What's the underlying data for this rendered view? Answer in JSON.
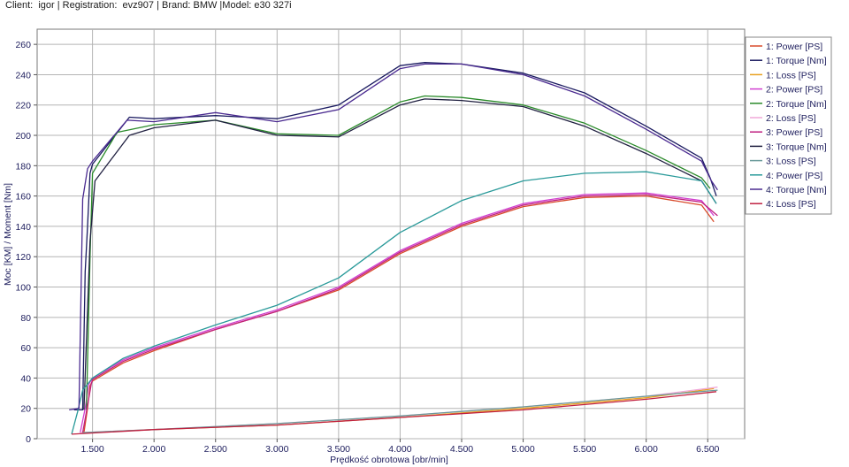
{
  "header": {
    "client_label": "Client:",
    "client_value": "igor",
    "registration_label": "Registration:",
    "registration_value": "evz907",
    "brand_label": "Brand:",
    "brand_value": "BMW",
    "model_label": "Model:",
    "model_value": "e30 327i"
  },
  "chart_data": {
    "type": "line",
    "title": "",
    "xlabel": "Prędkość obrotowa [obr/min]",
    "ylabel": "Moc [KM] / Moment [Nm]",
    "xlim": [
      1050,
      6800
    ],
    "ylim": [
      0,
      270
    ],
    "x_ticks": [
      1500,
      2000,
      2500,
      3000,
      3500,
      4000,
      4500,
      5000,
      5500,
      6000,
      6500
    ],
    "x_tick_labels": [
      "1.500",
      "2.000",
      "2.500",
      "3.000",
      "3.500",
      "4.000",
      "4.500",
      "5.000",
      "5.500",
      "6.000",
      "6.500"
    ],
    "y_ticks": [
      0,
      20,
      40,
      60,
      80,
      100,
      120,
      140,
      160,
      180,
      200,
      220,
      240,
      260
    ],
    "grid": true,
    "legend_position": "right",
    "series": [
      {
        "name": "1: Power [PS]",
        "color": "#d84a2a",
        "points": [
          [
            1430,
            4
          ],
          [
            1460,
            20
          ],
          [
            1480,
            35
          ],
          [
            1500,
            38
          ],
          [
            1750,
            50
          ],
          [
            2000,
            58
          ],
          [
            2500,
            72
          ],
          [
            3000,
            84
          ],
          [
            3500,
            98
          ],
          [
            4000,
            122
          ],
          [
            4500,
            140
          ],
          [
            5000,
            153
          ],
          [
            5500,
            159
          ],
          [
            6000,
            160
          ],
          [
            6450,
            154
          ],
          [
            6550,
            143
          ]
        ]
      },
      {
        "name": "1: Torque [Nm]",
        "color": "#1a1a60",
        "points": [
          [
            1350,
            19
          ],
          [
            1420,
            19
          ],
          [
            1440,
            110
          ],
          [
            1460,
            140
          ],
          [
            1480,
            175
          ],
          [
            1500,
            181
          ],
          [
            1800,
            212
          ],
          [
            2000,
            211
          ],
          [
            2500,
            213
          ],
          [
            3000,
            211
          ],
          [
            3500,
            220
          ],
          [
            4000,
            246
          ],
          [
            4200,
            248
          ],
          [
            4500,
            247
          ],
          [
            5000,
            241
          ],
          [
            5500,
            228
          ],
          [
            6000,
            206
          ],
          [
            6450,
            185
          ],
          [
            6520,
            172
          ],
          [
            6570,
            160
          ]
        ]
      },
      {
        "name": "1: Loss [PS]",
        "color": "#e8a020",
        "points": [
          [
            1430,
            4
          ],
          [
            2000,
            6
          ],
          [
            3000,
            9
          ],
          [
            4000,
            14
          ],
          [
            5000,
            20
          ],
          [
            6000,
            27
          ],
          [
            6550,
            33
          ]
        ]
      },
      {
        "name": "2: Power [PS]",
        "color": "#d040d0",
        "points": [
          [
            1400,
            4
          ],
          [
            1440,
            20
          ],
          [
            1470,
            36
          ],
          [
            1500,
            40
          ],
          [
            1750,
            52
          ],
          [
            2000,
            60
          ],
          [
            2500,
            73
          ],
          [
            3000,
            85
          ],
          [
            3500,
            100
          ],
          [
            4000,
            124
          ],
          [
            4500,
            142
          ],
          [
            5000,
            155
          ],
          [
            5500,
            161
          ],
          [
            6000,
            162
          ],
          [
            6450,
            157
          ],
          [
            6550,
            147
          ]
        ]
      },
      {
        "name": "2: Torque [Nm]",
        "color": "#2a8a2a",
        "points": [
          [
            1450,
            19
          ],
          [
            1480,
            120
          ],
          [
            1500,
            175
          ],
          [
            1700,
            202
          ],
          [
            2000,
            207
          ],
          [
            2500,
            210
          ],
          [
            3000,
            201
          ],
          [
            3500,
            200
          ],
          [
            4000,
            222
          ],
          [
            4200,
            226
          ],
          [
            4500,
            225
          ],
          [
            5000,
            220
          ],
          [
            5500,
            208
          ],
          [
            6000,
            190
          ],
          [
            6450,
            172
          ],
          [
            6520,
            165
          ]
        ]
      },
      {
        "name": "2: Loss [PS]",
        "color": "#f0a8d8",
        "points": [
          [
            1400,
            4
          ],
          [
            2000,
            6
          ],
          [
            3000,
            10
          ],
          [
            4000,
            15
          ],
          [
            5000,
            21
          ],
          [
            6000,
            28
          ],
          [
            6580,
            34
          ]
        ]
      },
      {
        "name": "3: Power [PS]",
        "color": "#c02080",
        "points": [
          [
            1420,
            4
          ],
          [
            1460,
            22
          ],
          [
            1490,
            36
          ],
          [
            1500,
            39
          ],
          [
            1750,
            51
          ],
          [
            2000,
            59
          ],
          [
            2500,
            72
          ],
          [
            3000,
            84
          ],
          [
            3500,
            99
          ],
          [
            4000,
            123
          ],
          [
            4500,
            141
          ],
          [
            5000,
            154
          ],
          [
            5500,
            160
          ],
          [
            6000,
            161
          ],
          [
            6450,
            156
          ],
          [
            6580,
            147
          ]
        ]
      },
      {
        "name": "3: Torque [Nm]",
        "color": "#202040",
        "points": [
          [
            1430,
            19
          ],
          [
            1480,
            130
          ],
          [
            1520,
            170
          ],
          [
            1800,
            200
          ],
          [
            2000,
            205
          ],
          [
            2500,
            210
          ],
          [
            3000,
            200
          ],
          [
            3500,
            199
          ],
          [
            4000,
            220
          ],
          [
            4200,
            224
          ],
          [
            4500,
            223
          ],
          [
            5000,
            219
          ],
          [
            5500,
            206
          ],
          [
            6000,
            188
          ],
          [
            6450,
            170
          ],
          [
            6570,
            155
          ]
        ]
      },
      {
        "name": "3: Loss [PS]",
        "color": "#6a9a9a",
        "points": [
          [
            1420,
            4
          ],
          [
            2000,
            6
          ],
          [
            3000,
            10
          ],
          [
            4000,
            15
          ],
          [
            5000,
            21
          ],
          [
            6000,
            28
          ],
          [
            6580,
            32
          ]
        ]
      },
      {
        "name": "4: Power [PS]",
        "color": "#2a9a9a",
        "points": [
          [
            1330,
            3
          ],
          [
            1380,
            18
          ],
          [
            1420,
            32
          ],
          [
            1500,
            40
          ],
          [
            1750,
            53
          ],
          [
            2000,
            61
          ],
          [
            2500,
            75
          ],
          [
            3000,
            88
          ],
          [
            3500,
            106
          ],
          [
            4000,
            136
          ],
          [
            4500,
            157
          ],
          [
            5000,
            170
          ],
          [
            5500,
            175
          ],
          [
            6000,
            176
          ],
          [
            6450,
            170
          ],
          [
            6570,
            155
          ]
        ]
      },
      {
        "name": "4: Torque [Nm]",
        "color": "#4a2a90",
        "points": [
          [
            1310,
            19
          ],
          [
            1390,
            20
          ],
          [
            1420,
            158
          ],
          [
            1460,
            178
          ],
          [
            1500,
            183
          ],
          [
            1780,
            210
          ],
          [
            2000,
            209
          ],
          [
            2500,
            215
          ],
          [
            3000,
            209
          ],
          [
            3500,
            217
          ],
          [
            4000,
            244
          ],
          [
            4200,
            247
          ],
          [
            4500,
            247
          ],
          [
            5000,
            240
          ],
          [
            5500,
            226
          ],
          [
            6000,
            204
          ],
          [
            6450,
            183
          ],
          [
            6530,
            170
          ],
          [
            6580,
            164
          ]
        ]
      },
      {
        "name": "4: Loss [PS]",
        "color": "#c02040",
        "points": [
          [
            1330,
            3
          ],
          [
            2000,
            6
          ],
          [
            3000,
            9
          ],
          [
            4000,
            14
          ],
          [
            5000,
            19
          ],
          [
            6000,
            26
          ],
          [
            6570,
            31
          ]
        ]
      }
    ]
  }
}
